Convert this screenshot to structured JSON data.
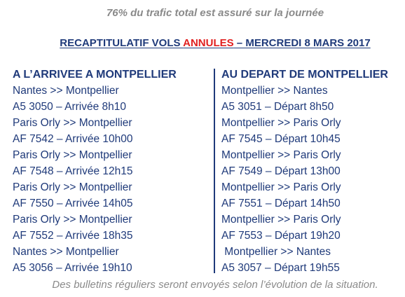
{
  "top_note": "76% du trafic total est assuré sur la journée",
  "title": {
    "part1": "RECAPTITULATIF VOLS ",
    "highlight": "ANNULES",
    "part2": " – MERCREDI 8 MARS 2017"
  },
  "arrivals": {
    "header": "A L’ARRIVEE A MONTPELLIER",
    "lines": [
      "Nantes >>  Montpellier",
      "A5 3050 – Arrivée 8h10",
      "Paris Orly >>  Montpellier",
      "AF 7542 – Arrivée 10h00",
      "Paris Orly >>  Montpellier",
      "AF 7548 – Arrivée 12h15",
      "Paris Orly >> Montpellier",
      "AF 7550 – Arrivée 14h05",
      "Paris Orly >>  Montpellier",
      "AF 7552 – Arrivée 18h35",
      "Nantes >>  Montpellier",
      "A5 3056 – Arrivée 19h10"
    ]
  },
  "departures": {
    "header": "AU DEPART DE MONTPELLIER",
    "lines": [
      "Montpellier >> Nantes",
      "A5 3051 – Départ 8h50",
      "Montpellier >> Paris Orly",
      "AF 7545 – Départ 10h45",
      "Montpellier >> Paris Orly",
      "AF 7549 – Départ 13h00",
      "Montpellier >> Paris Orly",
      "AF 7551 – Départ 14h50",
      "Montpellier >> Paris Orly",
      "AF 7553 – Départ 19h20",
      " Montpellier >> Nantes",
      "A5 3057 – Départ 19h55"
    ]
  },
  "bottom_note": "Des bulletins réguliers seront envoyés selon l’évolution de la situation.",
  "colors": {
    "text": "#1f3a7a",
    "accent": "#e02020",
    "note": "#8a8a8a"
  }
}
